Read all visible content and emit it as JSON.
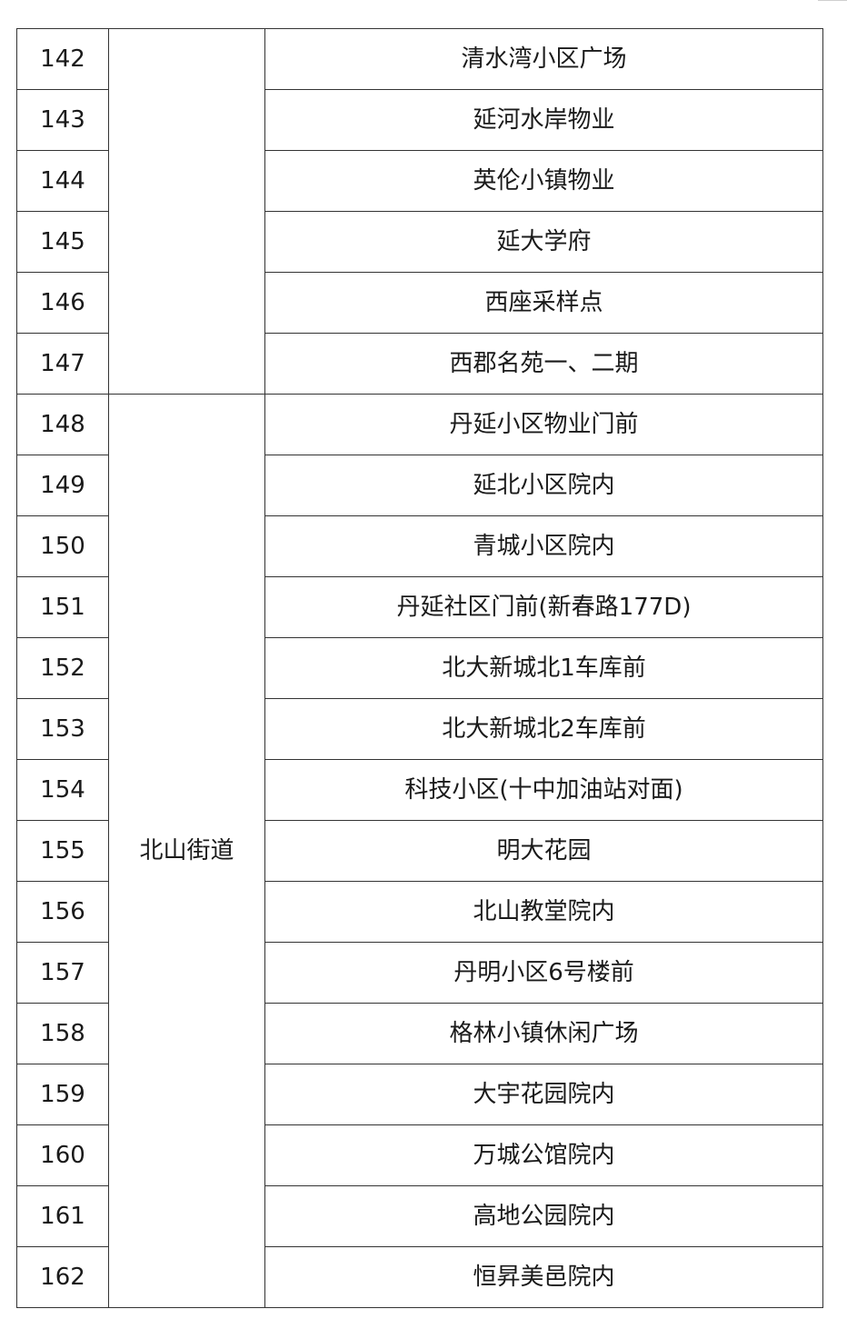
{
  "table": {
    "groups": [
      {
        "district": "",
        "start": 0,
        "count": 6
      },
      {
        "district": "北山街道",
        "start": 6,
        "count": 15
      }
    ],
    "rows": [
      {
        "no": "142",
        "site": "清水湾小区广场"
      },
      {
        "no": "143",
        "site": "延河水岸物业"
      },
      {
        "no": "144",
        "site": "英伦小镇物业"
      },
      {
        "no": "145",
        "site": "延大学府"
      },
      {
        "no": "146",
        "site": "西座采样点"
      },
      {
        "no": "147",
        "site": "西郡名苑一、二期"
      },
      {
        "no": "148",
        "site": "丹延小区物业门前"
      },
      {
        "no": "149",
        "site": "延北小区院内"
      },
      {
        "no": "150",
        "site": "青城小区院内"
      },
      {
        "no": "151",
        "site": "丹延社区门前(新春路177D)"
      },
      {
        "no": "152",
        "site": "北大新城北1车库前"
      },
      {
        "no": "153",
        "site": "北大新城北2车库前"
      },
      {
        "no": "154",
        "site": "科技小区(十中加油站对面)"
      },
      {
        "no": "155",
        "site": "明大花园"
      },
      {
        "no": "156",
        "site": "北山教堂院内"
      },
      {
        "no": "157",
        "site": "丹明小区6号楼前"
      },
      {
        "no": "158",
        "site": "格林小镇休闲广场"
      },
      {
        "no": "159",
        "site": "大宇花园院内"
      },
      {
        "no": "160",
        "site": "万城公馆院内"
      },
      {
        "no": "161",
        "site": "高地公园院内"
      },
      {
        "no": "162",
        "site": "恒昇美邑院内"
      }
    ]
  }
}
